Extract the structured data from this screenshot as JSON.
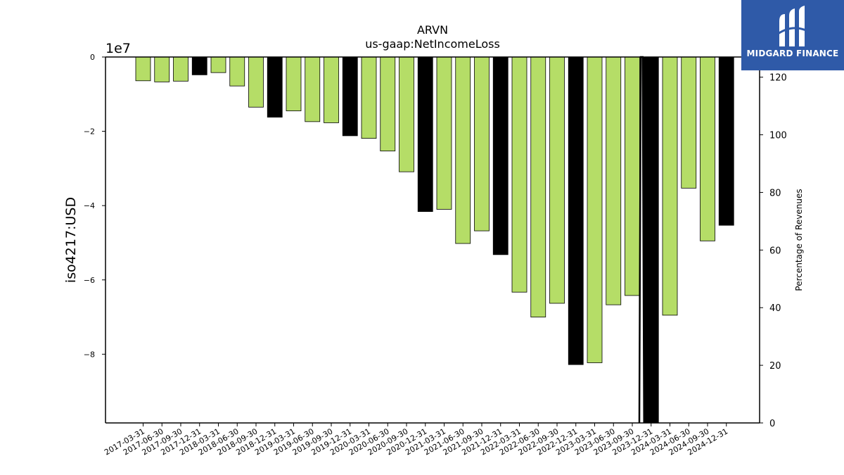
{
  "chart_data": {
    "type": "bar",
    "title": "ARVN",
    "subtitle": "us-gaap:NetIncomeLoss",
    "ylabel": "iso4217:USD",
    "y_offset_label": "1e7",
    "y2label": "Percentage of Revenues",
    "ylim": [
      -98500000,
      0
    ],
    "y2lim": [
      0,
      127
    ],
    "yticks": [
      0,
      -2,
      -4,
      -6,
      -8
    ],
    "y2ticks": [
      0,
      20,
      40,
      60,
      80,
      100,
      120
    ],
    "grid": false,
    "categories": [
      "2017-03-31",
      "2017-06-30",
      "2017-09-30",
      "2017-12-31",
      "2018-03-31",
      "2018-06-30",
      "2018-09-30",
      "2018-12-31",
      "2019-03-31",
      "2019-06-30",
      "2019-09-30",
      "2019-12-31",
      "2020-03-31",
      "2020-06-30",
      "2020-09-30",
      "2020-12-31",
      "2021-03-31",
      "2021-06-30",
      "2021-09-30",
      "2021-12-31",
      "2022-03-31",
      "2022-06-30",
      "2022-09-30",
      "2022-12-31",
      "2023-03-31",
      "2023-06-30",
      "2023-09-30",
      "2023-12-31",
      "2024-03-31",
      "2024-06-30",
      "2024-09-30",
      "2024-12-31"
    ],
    "values": [
      -6400000,
      -6700000,
      -6500000,
      -4800000,
      -4200000,
      -7800000,
      -13500000,
      -16200000,
      -14500000,
      -17400000,
      -17700000,
      -21200000,
      -21900000,
      -25300000,
      -30900000,
      -41600000,
      -41000000,
      -50200000,
      -46800000,
      -53200000,
      -63300000,
      -70000000,
      -66300000,
      -82800000,
      -82300000,
      -66700000,
      -64200000,
      -98500000,
      -69500000,
      -35300000,
      -49500000,
      -45300000
    ],
    "annual_flags": [
      false,
      false,
      false,
      true,
      false,
      false,
      false,
      true,
      false,
      false,
      false,
      true,
      false,
      false,
      false,
      true,
      false,
      false,
      false,
      true,
      false,
      false,
      false,
      true,
      false,
      false,
      false,
      true,
      false,
      false,
      false,
      true
    ],
    "colors": {
      "quarterly": "#b5dd67",
      "annual": "#000000"
    },
    "pct_revenue_line": [
      {
        "x": "2023-09-30",
        "y": 0
      },
      {
        "x": "2023-09-30",
        "y": 127
      },
      {
        "x": "2023-12-31",
        "y": 127
      },
      {
        "x": "2023-12-31",
        "y": 0
      }
    ]
  },
  "logo": {
    "name": "MIDGARD FINANCE"
  }
}
